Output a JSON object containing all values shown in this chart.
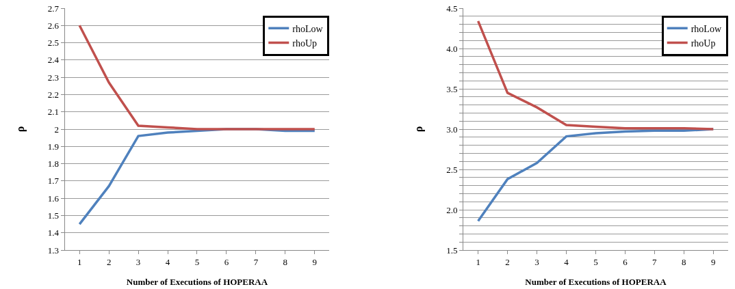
{
  "chart_data": [
    {
      "type": "line",
      "xlabel": "Number of Executions of HOPERAA",
      "ylabel": "ρ",
      "categories": [
        "1",
        "2",
        "3",
        "4",
        "5",
        "6",
        "7",
        "8",
        "9"
      ],
      "series": [
        {
          "name": "rhoLow",
          "color": "#4f81bd",
          "values": [
            1.45,
            1.67,
            1.96,
            1.98,
            1.99,
            2.0,
            2.0,
            1.99,
            1.99
          ]
        },
        {
          "name": "rhoUp",
          "color": "#c0504d",
          "values": [
            2.6,
            2.27,
            2.02,
            2.01,
            2.0,
            2.0,
            2.0,
            2.0,
            2.0
          ]
        }
      ],
      "ylim": [
        1.3,
        2.7
      ],
      "yticks": [
        1.3,
        1.4,
        1.5,
        1.6,
        1.7,
        1.8,
        1.9,
        2,
        2.1,
        2.2,
        2.3,
        2.4,
        2.5,
        2.6,
        2.7
      ],
      "grid": "y",
      "legend": "top right",
      "marker": "none",
      "line_style": "solid"
    },
    {
      "type": "line",
      "xlabel": "Number of Executions of HOPERAA",
      "ylabel": "ρ",
      "categories": [
        "1",
        "2",
        "3",
        "4",
        "5",
        "6",
        "7",
        "8",
        "9"
      ],
      "series": [
        {
          "name": "rhoLow",
          "color": "#4f81bd",
          "values": [
            1.86,
            2.38,
            2.58,
            2.91,
            2.95,
            2.97,
            2.98,
            2.98,
            3.0
          ]
        },
        {
          "name": "rhoUp",
          "color": "#c0504d",
          "values": [
            4.34,
            3.45,
            3.27,
            3.05,
            3.03,
            3.01,
            3.01,
            3.01,
            3.0
          ]
        }
      ],
      "ylim": [
        1.5,
        4.5
      ],
      "yticks": [
        {
          "value": 1.5,
          "label": "1.5"
        },
        {
          "value": 1.6,
          "label": null
        },
        {
          "value": 1.7,
          "label": null
        },
        {
          "value": 1.8,
          "label": null
        },
        {
          "value": 1.9,
          "label": null
        },
        {
          "value": 2.0,
          "label": "2.0"
        },
        {
          "value": 2.1,
          "label": null
        },
        {
          "value": 2.2,
          "label": null
        },
        {
          "value": 2.3,
          "label": null
        },
        {
          "value": 2.4,
          "label": null
        },
        {
          "value": 2.5,
          "label": "2.5"
        },
        {
          "value": 2.6,
          "label": null
        },
        {
          "value": 2.7,
          "label": null
        },
        {
          "value": 2.8,
          "label": null
        },
        {
          "value": 2.9,
          "label": null
        },
        {
          "value": 3.0,
          "label": "3.0"
        },
        {
          "value": 3.1,
          "label": null
        },
        {
          "value": 3.2,
          "label": null
        },
        {
          "value": 3.3,
          "label": null
        },
        {
          "value": 3.4,
          "label": null
        },
        {
          "value": 3.5,
          "label": "3.5"
        },
        {
          "value": 3.6,
          "label": null
        },
        {
          "value": 3.7,
          "label": null
        },
        {
          "value": 3.8,
          "label": null
        },
        {
          "value": 3.9,
          "label": null
        },
        {
          "value": 4.0,
          "label": "4.0"
        },
        {
          "value": 4.1,
          "label": null
        },
        {
          "value": 4.2,
          "label": null
        },
        {
          "value": 4.3,
          "label": null
        },
        {
          "value": 4.4,
          "label": null
        },
        {
          "value": 4.5,
          "label": "4.5"
        }
      ],
      "grid": "y",
      "legend": "top right",
      "marker": "none",
      "line_style": "solid"
    }
  ]
}
